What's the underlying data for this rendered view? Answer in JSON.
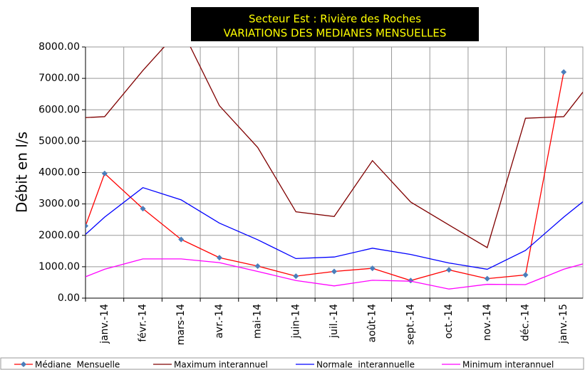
{
  "chart_data": {
    "type": "line",
    "title": "Secteur Est : Rivière des Roches",
    "subtitle": "VARIATIONS DES MEDIANES MENSUELLES",
    "y_label": "Débit en l/s",
    "categories": [
      null,
      "janv.-14",
      "févr.-14",
      "mars-14",
      "avr.-14",
      "mai-14",
      "juin-14",
      "juil.-14",
      "août-14",
      "sept.-14",
      "oct.-14",
      "nov.-14",
      "déc.-14",
      "janv.-15",
      null
    ],
    "series": [
      {
        "name": "Médiane  Mensuelle",
        "color": "#ff0000",
        "marker_color": "#4a7ebb",
        "marker": "diamond",
        "values": [
          2300,
          3970,
          2850,
          1870,
          1290,
          1020,
          700,
          850,
          950,
          560,
          900,
          620,
          740,
          7200,
          null
        ]
      },
      {
        "name": "Maximum interannuel",
        "color": "#800000",
        "values": [
          5750,
          5780,
          7250,
          8600,
          6130,
          4800,
          2750,
          2600,
          4380,
          3060,
          2330,
          1610,
          5730,
          5780,
          6560
        ]
      },
      {
        "name": "Normale  interannuelle",
        "color": "#0000ff",
        "values": [
          2030,
          2580,
          3520,
          3130,
          2390,
          1860,
          1260,
          1310,
          1590,
          1390,
          1120,
          920,
          1520,
          2580,
          3070
        ]
      },
      {
        "name": "Minimum interannuel",
        "color": "#ff00ff",
        "values": [
          680,
          920,
          1250,
          1250,
          1130,
          850,
          560,
          390,
          570,
          540,
          290,
          440,
          430,
          920,
          1090
        ]
      }
    ],
    "ylim": [
      0,
      8000
    ],
    "yticks": [
      {
        "value": 0,
        "label": "0.00"
      },
      {
        "value": 1000,
        "label": "1000.00"
      },
      {
        "value": 2000,
        "label": "2000.00"
      },
      {
        "value": 3000,
        "label": "3000.00"
      },
      {
        "value": 4000,
        "label": "4000.00"
      },
      {
        "value": 5000,
        "label": "5000.00"
      },
      {
        "value": 6000,
        "label": "6000.00"
      },
      {
        "value": 7000,
        "label": "7000.00"
      },
      {
        "value": 8000,
        "label": "8000.00"
      }
    ],
    "grid": true,
    "legend": "bottom"
  }
}
